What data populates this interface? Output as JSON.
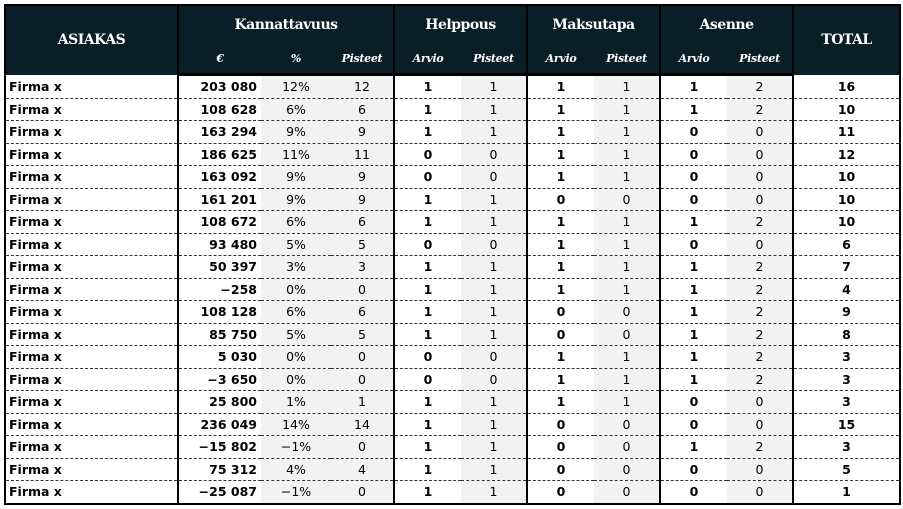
{
  "header": {
    "asiakas": "ASIAKAS",
    "groups": {
      "kannattavuus": "Kannattavuus",
      "helppous": "Helppous",
      "maksutapa": "Maksutapa",
      "asenne": "Asenne"
    },
    "total": "TOTAL",
    "sub": {
      "eur": "€",
      "pct": "%",
      "pisteet": "Pisteet",
      "arvio": "Arvio"
    }
  },
  "colors": {
    "header_bg": "#0a1e28",
    "header_text": "#ffffff",
    "shade": "#f2f2f2"
  },
  "rows": [
    {
      "name": "Firma x",
      "eur": "203 080",
      "pct": "12%",
      "k_pts": "12",
      "h_arvio": "1",
      "h_pts": "1",
      "m_arvio": "1",
      "m_pts": "1",
      "a_arvio": "1",
      "a_pts": "2",
      "total": "16"
    },
    {
      "name": "Firma x",
      "eur": "108 628",
      "pct": "6%",
      "k_pts": "6",
      "h_arvio": "1",
      "h_pts": "1",
      "m_arvio": "1",
      "m_pts": "1",
      "a_arvio": "1",
      "a_pts": "2",
      "total": "10"
    },
    {
      "name": "Firma x",
      "eur": "163 294",
      "pct": "9%",
      "k_pts": "9",
      "h_arvio": "1",
      "h_pts": "1",
      "m_arvio": "1",
      "m_pts": "1",
      "a_arvio": "0",
      "a_pts": "0",
      "total": "11"
    },
    {
      "name": "Firma x",
      "eur": "186 625",
      "pct": "11%",
      "k_pts": "11",
      "h_arvio": "0",
      "h_pts": "0",
      "m_arvio": "1",
      "m_pts": "1",
      "a_arvio": "0",
      "a_pts": "0",
      "total": "12"
    },
    {
      "name": "Firma x",
      "eur": "163 092",
      "pct": "9%",
      "k_pts": "9",
      "h_arvio": "0",
      "h_pts": "0",
      "m_arvio": "1",
      "m_pts": "1",
      "a_arvio": "0",
      "a_pts": "0",
      "total": "10"
    },
    {
      "name": "Firma x",
      "eur": "161 201",
      "pct": "9%",
      "k_pts": "9",
      "h_arvio": "1",
      "h_pts": "1",
      "m_arvio": "0",
      "m_pts": "0",
      "a_arvio": "0",
      "a_pts": "0",
      "total": "10"
    },
    {
      "name": "Firma x",
      "eur": "108 672",
      "pct": "6%",
      "k_pts": "6",
      "h_arvio": "1",
      "h_pts": "1",
      "m_arvio": "1",
      "m_pts": "1",
      "a_arvio": "1",
      "a_pts": "2",
      "total": "10"
    },
    {
      "name": "Firma x",
      "eur": "93 480",
      "pct": "5%",
      "k_pts": "5",
      "h_arvio": "0",
      "h_pts": "0",
      "m_arvio": "1",
      "m_pts": "1",
      "a_arvio": "0",
      "a_pts": "0",
      "total": "6"
    },
    {
      "name": "Firma x",
      "eur": "50 397",
      "pct": "3%",
      "k_pts": "3",
      "h_arvio": "1",
      "h_pts": "1",
      "m_arvio": "1",
      "m_pts": "1",
      "a_arvio": "1",
      "a_pts": "2",
      "total": "7"
    },
    {
      "name": "Firma x",
      "eur": "−258",
      "pct": "0%",
      "k_pts": "0",
      "h_arvio": "1",
      "h_pts": "1",
      "m_arvio": "1",
      "m_pts": "1",
      "a_arvio": "1",
      "a_pts": "2",
      "total": "4"
    },
    {
      "name": "Firma x",
      "eur": "108 128",
      "pct": "6%",
      "k_pts": "6",
      "h_arvio": "1",
      "h_pts": "1",
      "m_arvio": "0",
      "m_pts": "0",
      "a_arvio": "1",
      "a_pts": "2",
      "total": "9"
    },
    {
      "name": "Firma x",
      "eur": "85 750",
      "pct": "5%",
      "k_pts": "5",
      "h_arvio": "1",
      "h_pts": "1",
      "m_arvio": "0",
      "m_pts": "0",
      "a_arvio": "1",
      "a_pts": "2",
      "total": "8"
    },
    {
      "name": "Firma x",
      "eur": "5 030",
      "pct": "0%",
      "k_pts": "0",
      "h_arvio": "0",
      "h_pts": "0",
      "m_arvio": "1",
      "m_pts": "1",
      "a_arvio": "1",
      "a_pts": "2",
      "total": "3"
    },
    {
      "name": "Firma x",
      "eur": "−3 650",
      "pct": "0%",
      "k_pts": "0",
      "h_arvio": "0",
      "h_pts": "0",
      "m_arvio": "1",
      "m_pts": "1",
      "a_arvio": "1",
      "a_pts": "2",
      "total": "3"
    },
    {
      "name": "Firma x",
      "eur": "25 800",
      "pct": "1%",
      "k_pts": "1",
      "h_arvio": "1",
      "h_pts": "1",
      "m_arvio": "1",
      "m_pts": "1",
      "a_arvio": "0",
      "a_pts": "0",
      "total": "3"
    },
    {
      "name": "Firma x",
      "eur": "236 049",
      "pct": "14%",
      "k_pts": "14",
      "h_arvio": "1",
      "h_pts": "1",
      "m_arvio": "0",
      "m_pts": "0",
      "a_arvio": "0",
      "a_pts": "0",
      "total": "15"
    },
    {
      "name": "Firma x",
      "eur": "−15 802",
      "pct": "−1%",
      "k_pts": "0",
      "h_arvio": "1",
      "h_pts": "1",
      "m_arvio": "0",
      "m_pts": "0",
      "a_arvio": "1",
      "a_pts": "2",
      "total": "3"
    },
    {
      "name": "Firma x",
      "eur": "75 312",
      "pct": "4%",
      "k_pts": "4",
      "h_arvio": "1",
      "h_pts": "1",
      "m_arvio": "0",
      "m_pts": "0",
      "a_arvio": "0",
      "a_pts": "0",
      "total": "5"
    },
    {
      "name": "Firma x",
      "eur": "−25 087",
      "pct": "−1%",
      "k_pts": "0",
      "h_arvio": "1",
      "h_pts": "1",
      "m_arvio": "0",
      "m_pts": "0",
      "a_arvio": "0",
      "a_pts": "0",
      "total": "1"
    }
  ]
}
